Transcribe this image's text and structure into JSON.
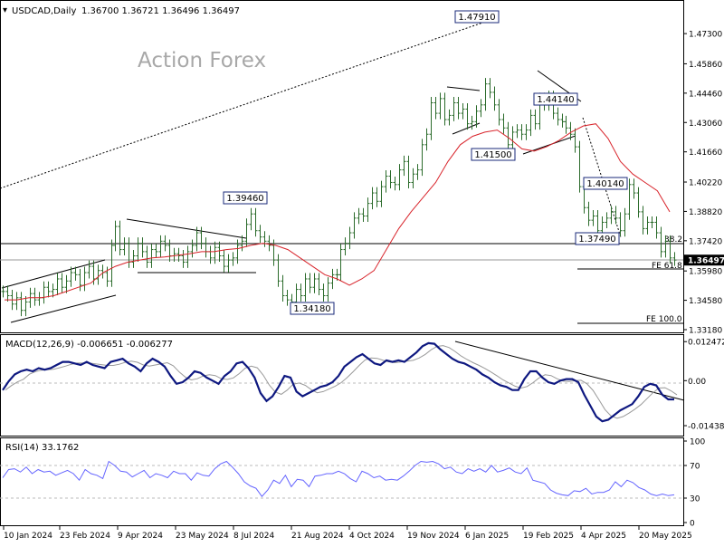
{
  "header": {
    "symbol": "USDCAD,Daily",
    "ohlc": "1.36700 1.36721 1.36496 1.36497",
    "watermark": "Action Forex"
  },
  "chart_data": [
    {
      "type": "candlestick",
      "symbol": "USDCAD",
      "timeframe": "Daily",
      "ylim": [
        1.3318,
        1.4873
      ],
      "price_ticks": [
        "1.47300",
        "1.45860",
        "1.44460",
        "1.43060",
        "1.41660",
        "1.40220",
        "1.38820",
        "1.37420",
        "1.35980",
        "1.34580",
        "1.33180"
      ],
      "current_price": "1.36497",
      "price_labels": [
        {
          "text": "1.47910",
          "value": 1.4791
        },
        {
          "text": "1.39460",
          "value": 1.3946
        },
        {
          "text": "1.44140",
          "value": 1.4414
        },
        {
          "text": "1.41500",
          "value": 1.415
        },
        {
          "text": "1.40140",
          "value": 1.4014
        },
        {
          "text": "1.37490",
          "value": 1.3749
        },
        {
          "text": "1.34180",
          "value": 1.3418
        }
      ],
      "fib_labels": [
        "38.2",
        "FE 61.8",
        "FE 100.0"
      ],
      "series": [
        {
          "name": "Price",
          "color": "#2b6b2b",
          "values": [
            1.35,
            1.348,
            1.344,
            1.347,
            1.341,
            1.345,
            1.349,
            1.346,
            1.347,
            1.352,
            1.35,
            1.351,
            1.356,
            1.352,
            1.355,
            1.359,
            1.358,
            1.353,
            1.359,
            1.362,
            1.356,
            1.36,
            1.359,
            1.355,
            1.372,
            1.381,
            1.37,
            1.373,
            1.364,
            1.367,
            1.373,
            1.369,
            1.364,
            1.37,
            1.369,
            1.374,
            1.372,
            1.367,
            1.368,
            1.367,
            1.364,
            1.369,
            1.372,
            1.378,
            1.373,
            1.369,
            1.366,
            1.371,
            1.367,
            1.362,
            1.365,
            1.366,
            1.372,
            1.374,
            1.382,
            1.387,
            1.379,
            1.376,
            1.374,
            1.372,
            1.365,
            1.355,
            1.348,
            1.346,
            1.345,
            1.351,
            1.348,
            1.356,
            1.352,
            1.356,
            1.351,
            1.348,
            1.354,
            1.358,
            1.358,
            1.37,
            1.373,
            1.378,
            1.385,
            1.387,
            1.386,
            1.392,
            1.397,
            1.393,
            1.4,
            1.405,
            1.402,
            1.401,
            1.408,
            1.412,
            1.402,
            1.406,
            1.408,
            1.42,
            1.425,
            1.44,
            1.435,
            1.442,
            1.432,
            1.434,
            1.44,
            1.435,
            1.437,
            1.43,
            1.431,
            1.436,
            1.439,
            1.449,
            1.445,
            1.439,
            1.432,
            1.428,
            1.42,
            1.426,
            1.427,
            1.425,
            1.427,
            1.434,
            1.43,
            1.442,
            1.439,
            1.443,
            1.435,
            1.432,
            1.431,
            1.428,
            1.425,
            1.419,
            1.4,
            1.39,
            1.384,
            1.386,
            1.379,
            1.383,
            1.385,
            1.388,
            1.385,
            1.379,
            1.387,
            1.401,
            1.397,
            1.388,
            1.38,
            1.383,
            1.383,
            1.378,
            1.369,
            1.374,
            1.366,
            1.365
          ]
        },
        {
          "name": "Moving average",
          "color": "#d8232a",
          "values": [
            1.346,
            1.346,
            1.347,
            1.347,
            1.348,
            1.35,
            1.352,
            1.354,
            1.359,
            1.362,
            1.364,
            1.365,
            1.366,
            1.3665,
            1.3672,
            1.368,
            1.369,
            1.369,
            1.37,
            1.3705,
            1.372,
            1.373,
            1.372,
            1.37,
            1.366,
            1.362,
            1.358,
            1.356,
            1.353,
            1.356,
            1.36,
            1.37,
            1.38,
            1.388,
            1.395,
            1.402,
            1.412,
            1.42,
            1.424,
            1.426,
            1.427,
            1.423,
            1.418,
            1.417,
            1.419,
            1.422,
            1.426,
            1.429,
            1.43,
            1.423,
            1.412,
            1.406,
            1.402,
            1.398,
            1.388
          ]
        }
      ]
    },
    {
      "type": "line",
      "title": "MACD(12,26,9) -0.006651 -0.006277",
      "ylim": [
        -0.0167,
        0.0137
      ],
      "y_ticks": [
        "0.012472",
        "0.00",
        "-0.014389"
      ],
      "series": [
        {
          "name": "MACD",
          "color": "#0e1880",
          "values": [
            -0.003,
            -0.0002,
            0.002,
            0.003,
            0.0035,
            0.003,
            0.004,
            0.0035,
            0.004,
            0.005,
            0.006,
            0.006,
            0.0055,
            0.005,
            0.006,
            0.005,
            0.0045,
            0.004,
            0.006,
            0.0065,
            0.007,
            0.0055,
            0.0045,
            0.003,
            0.0055,
            0.007,
            0.006,
            0.0045,
            0.0015,
            -0.001,
            -0.0005,
            0.001,
            0.003,
            0.0025,
            0.001,
            0.0,
            -0.001,
            0.0015,
            0.003,
            0.0055,
            0.006,
            0.004,
            0.001,
            -0.004,
            -0.0065,
            -0.005,
            -0.002,
            0.0015,
            0.001,
            -0.0035,
            -0.005,
            -0.004,
            -0.003,
            -0.002,
            -0.0015,
            -0.0005,
            0.0015,
            0.0045,
            0.006,
            0.0075,
            0.0085,
            0.007,
            0.0055,
            0.005,
            0.0065,
            0.006,
            0.0065,
            0.006,
            0.0075,
            0.009,
            0.011,
            0.012,
            0.0118,
            0.01,
            0.0085,
            0.007,
            0.006,
            0.0055,
            0.0045,
            0.0035,
            0.002,
            0.001,
            -0.0005,
            -0.0015,
            -0.002,
            -0.003,
            -0.003,
            0.0005,
            0.003,
            0.003,
            0.001,
            -0.0005,
            -0.001,
            0.0,
            0.0005,
            0.0005,
            -0.0005,
            -0.0045,
            -0.008,
            -0.0115,
            -0.013,
            -0.0125,
            -0.011,
            -0.0095,
            -0.0085,
            -0.0075,
            -0.005,
            -0.002,
            -0.001,
            -0.0015,
            -0.0045,
            -0.006,
            -0.006
          ]
        }
      ]
    },
    {
      "type": "line",
      "title": "RSI(14) 33.1762",
      "ylim": [
        0,
        100
      ],
      "y_ticks": [
        "100",
        "70",
        "30",
        "0"
      ],
      "series": [
        {
          "name": "RSI",
          "color": "#6464ff",
          "values": [
            55,
            65,
            66,
            62,
            68,
            60,
            65,
            62,
            63,
            58,
            61,
            64,
            60,
            52,
            65,
            60,
            58,
            54,
            75,
            70,
            63,
            62,
            56,
            60,
            64,
            55,
            60,
            58,
            55,
            63,
            60,
            60,
            52,
            61,
            58,
            57,
            66,
            72,
            75,
            68,
            60,
            50,
            45,
            42,
            32,
            40,
            52,
            48,
            58,
            44,
            53,
            52,
            44,
            57,
            58,
            60,
            60,
            63,
            60,
            54,
            50,
            63,
            60,
            55,
            57,
            52,
            53,
            52,
            57,
            63,
            70,
            75,
            74,
            75,
            72,
            66,
            68,
            62,
            60,
            66,
            63,
            66,
            62,
            70,
            62,
            64,
            67,
            62,
            60,
            67,
            52,
            50,
            48,
            40,
            36,
            34,
            33,
            39,
            38,
            42,
            35,
            37,
            37,
            40,
            50,
            44,
            52,
            49,
            43,
            40,
            35,
            33,
            35,
            33,
            34
          ]
        }
      ]
    }
  ],
  "x_axis": {
    "tick_labels": [
      "10 Jan 2024",
      "23 Feb 2024",
      "9 Apr 2024",
      "23 May 2024",
      "8 Jul 2024",
      "21 Aug 2024",
      "4 Oct 2024",
      "19 Nov 2024",
      "6 Jan 2025",
      "19 Feb 2025",
      "4 Apr 2025",
      "20 May 2025"
    ]
  },
  "colors": {
    "price": "#2b6b2b",
    "ma": "#d8232a",
    "macd": "#0e1880",
    "macd_signal": "#9a9a9a",
    "rsi": "#6464ff",
    "grid": "#dddddd",
    "line": "#000000",
    "highlight_box": "#1a2a7a"
  }
}
